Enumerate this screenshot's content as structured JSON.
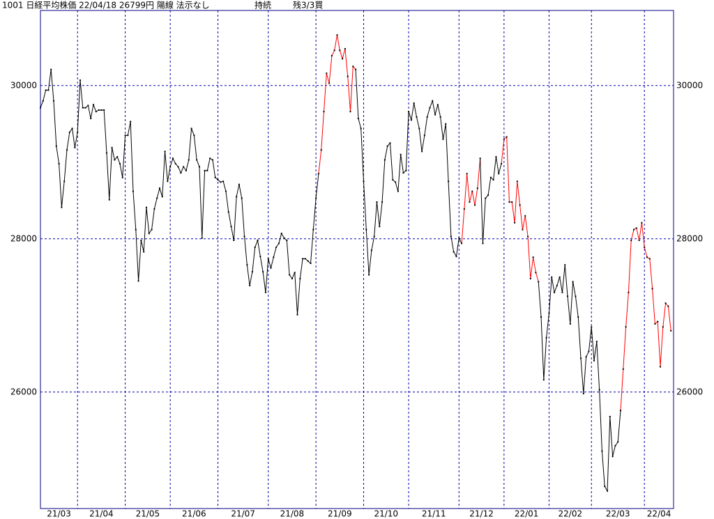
{
  "chart_data": {
    "type": "line",
    "title_parts": [
      "1001 日経平均株価 22/04/18 26799円 陽線 法示なし",
      "持続",
      "残3/3買"
    ],
    "xlim": [
      0,
      239
    ],
    "xticks": [
      {
        "value": 0,
        "label": "21/03"
      },
      {
        "value": 14,
        "label": "21/04"
      },
      {
        "value": 32,
        "label": "21/05"
      },
      {
        "value": 49,
        "label": "21/06"
      },
      {
        "value": 67,
        "label": "21/07"
      },
      {
        "value": 86,
        "label": "21/08"
      },
      {
        "value": 104,
        "label": "21/09"
      },
      {
        "value": 122,
        "label": "21/10"
      },
      {
        "value": 139,
        "label": "21/11"
      },
      {
        "value": 158,
        "label": "21/12"
      },
      {
        "value": 175,
        "label": "22/01"
      },
      {
        "value": 192,
        "label": "22/02"
      },
      {
        "value": 208,
        "label": "22/03"
      },
      {
        "value": 228,
        "label": "22/04"
      }
    ],
    "ylim": [
      24480,
      30980
    ],
    "yticks": [
      26000,
      28000,
      30000
    ],
    "grid": true,
    "marker_color": "#000000",
    "values": [
      29710,
      29800,
      29940,
      29940,
      30210,
      29800,
      29210,
      28980,
      28410,
      28750,
      29160,
      29390,
      29440,
      29190,
      29390,
      30070,
      29710,
      29710,
      29740,
      29570,
      29750,
      29660,
      29680,
      29680,
      29680,
      29120,
      28510,
      29190,
      29030,
      29070,
      28980,
      28800,
      29350,
      29350,
      29530,
      28620,
      28120,
      27450,
      27980,
      27830,
      28410,
      28070,
      28120,
      28390,
      28530,
      28660,
      28550,
      29140,
      28750,
      28940,
      29050,
      28980,
      28940,
      28860,
      28940,
      28890,
      29030,
      29440,
      29350,
      29030,
      28940,
      28010,
      28890,
      28890,
      29050,
      29030,
      28800,
      28770,
      28740,
      28750,
      28620,
      28350,
      28160,
      27980,
      28550,
      28710,
      28530,
      28030,
      27660,
      27390,
      27570,
      27890,
      27980,
      27770,
      27570,
      27300,
      27740,
      27620,
      27760,
      27890,
      27940,
      28070,
      28010,
      27980,
      27530,
      27480,
      27560,
      27010,
      27480,
      27740,
      27740,
      27710,
      27680,
      28120,
      28530,
      28850,
      29160,
      29660,
      30160,
      30030,
      30390,
      30460,
      30660,
      30460,
      30350,
      30480,
      30120,
      29660,
      30250,
      30210,
      29570,
      29440,
      28750,
      28120,
      27530,
      27850,
      28030,
      28480,
      28160,
      28480,
      29030,
      29210,
      29250,
      28770,
      28740,
      28620,
      29100,
      28860,
      28890,
      29660,
      29550,
      29770,
      29590,
      29440,
      29140,
      29350,
      29590,
      29710,
      29800,
      29620,
      29750,
      29590,
      29300,
      29500,
      28750,
      28030,
      27830,
      27770,
      28010,
      27940,
      28390,
      28850,
      28480,
      28620,
      28440,
      28660,
      29050,
      27940,
      28530,
      28570,
      28800,
      28770,
      29070,
      28850,
      28980,
      29300,
      29330,
      28480,
      28480,
      28210,
      28750,
      28440,
      28120,
      28300,
      28030,
      27480,
      27760,
      27560,
      27440,
      26980,
      26160,
      26710,
      27030,
      27500,
      27300,
      27390,
      27500,
      27300,
      27660,
      27250,
      26890,
      27440,
      27250,
      26980,
      26440,
      25980,
      26460,
      26530,
      26850,
      26410,
      26660,
      26030,
      25230,
      24770,
      24710,
      25680,
      25160,
      25300,
      25350,
      25760,
      26300,
      26850,
      27300,
      27980,
      28120,
      28140,
      27980,
      28210,
      27890,
      27760,
      27740,
      27350,
      26890,
      26920,
      26330,
      26850,
      27160,
      27120,
      26800
    ],
    "segment_colors": [
      "#000000",
      "#000000",
      "#000000",
      "#000000",
      "#000000",
      "#000000",
      "#000000",
      "#000000",
      "#000000",
      "#000000",
      "#000000",
      "#000000",
      "#000000",
      "#000000",
      "#000000",
      "#000000",
      "#000000",
      "#000000",
      "#000000",
      "#000000",
      "#000000",
      "#000000",
      "#000000",
      "#000000",
      "#000000",
      "#000000",
      "#000000",
      "#000000",
      "#000000",
      "#000000",
      "#000000",
      "#000000",
      "#000000",
      "#000000",
      "#000000",
      "#000000",
      "#000000",
      "#000000",
      "#000000",
      "#000000",
      "#000000",
      "#000000",
      "#000000",
      "#000000",
      "#000000",
      "#000000",
      "#000000",
      "#000000",
      "#000000",
      "#000000",
      "#000000",
      "#000000",
      "#000000",
      "#000000",
      "#000000",
      "#000000",
      "#000000",
      "#000000",
      "#000000",
      "#000000",
      "#000000",
      "#000000",
      "#000000",
      "#000000",
      "#000000",
      "#000000",
      "#000000",
      "#000000",
      "#000000",
      "#000000",
      "#000000",
      "#000000",
      "#000000",
      "#000000",
      "#000000",
      "#000000",
      "#000000",
      "#000000",
      "#000000",
      "#000000",
      "#000000",
      "#000000",
      "#000000",
      "#000000",
      "#000000",
      "#000000",
      "#000000",
      "#000000",
      "#000000",
      "#000000",
      "#000000",
      "#000000",
      "#000000",
      "#000000",
      "#000000",
      "#000000",
      "#000000",
      "#000000",
      "#000000",
      "#000000",
      "#000000",
      "#000000",
      "#000000",
      "#000000",
      "#000000",
      "#000000",
      "#ff0000",
      "#ff0000",
      "#ff0000",
      "#ff0000",
      "#ff0000",
      "#ff0000",
      "#ff0000",
      "#ff0000",
      "#ff0000",
      "#ff0000",
      "#ff0000",
      "#ff0000",
      "#ff0000",
      "#ff0000",
      "#000000",
      "#000000",
      "#000000",
      "#000000",
      "#000000",
      "#000000",
      "#000000",
      "#000000",
      "#000000",
      "#000000",
      "#000000",
      "#000000",
      "#000000",
      "#000000",
      "#000000",
      "#000000",
      "#000000",
      "#000000",
      "#000000",
      "#000000",
      "#000000",
      "#000000",
      "#000000",
      "#000000",
      "#000000",
      "#000000",
      "#000000",
      "#000000",
      "#000000",
      "#000000",
      "#000000",
      "#000000",
      "#000000",
      "#000000",
      "#000000",
      "#000000",
      "#000000",
      "#000000",
      "#000000",
      "#000000",
      "#ff0000",
      "#ff0000",
      "#ff0000",
      "#ff0000",
      "#ff0000",
      "#ff0000",
      "#ff0000",
      "#000000",
      "#000000",
      "#000000",
      "#000000",
      "#000000",
      "#000000",
      "#000000",
      "#000000",
      "#ff0000",
      "#ff0000",
      "#ff0000",
      "#ff0000",
      "#ff0000",
      "#ff0000",
      "#ff0000",
      "#ff0000",
      "#ff0000",
      "#ff0000",
      "#ff0000",
      "#ff0000",
      "#ff0000",
      "#ff0000",
      "#000000",
      "#000000",
      "#000000",
      "#000000",
      "#000000",
      "#000000",
      "#000000",
      "#000000",
      "#000000",
      "#000000",
      "#000000",
      "#000000",
      "#000000",
      "#000000",
      "#000000",
      "#000000",
      "#000000",
      "#000000",
      "#000000",
      "#000000",
      "#000000",
      "#000000",
      "#000000",
      "#000000",
      "#000000",
      "#000000",
      "#000000",
      "#000000",
      "#000000",
      "#000000",
      "#000000",
      "#ff0000",
      "#ff0000",
      "#ff0000",
      "#ff0000",
      "#ff0000",
      "#ff0000",
      "#ff0000",
      "#ff0000",
      "#ff0000",
      "#ff0000",
      "#ff0000",
      "#ff0000",
      "#ff0000",
      "#ff0000",
      "#ff0000",
      "#ff0000",
      "#ff0000",
      "#ff0000",
      "#ff0000"
    ]
  }
}
